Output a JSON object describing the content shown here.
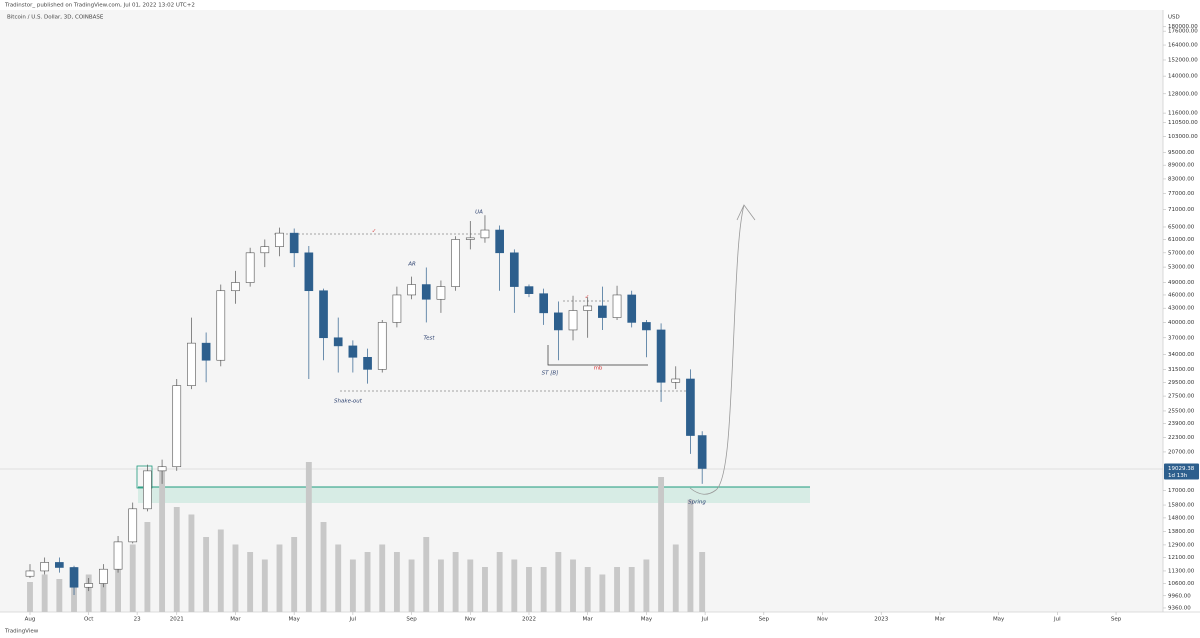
{
  "chart_data": {
    "type": "candlestick",
    "header": "Tradinstor_ published on TradingView.com, Jul 01, 2022 13:02 UTC+2",
    "title": "Bitcoin / U.S. Dollar, 3D, COINBASE",
    "currency": "USD",
    "footer": "TradingView",
    "log_scale": true,
    "up_color": "#ffffff",
    "down_color": "#2d5f8d",
    "wick_color": "#555555",
    "volume_color": "#c8c8c8",
    "x": [
      0,
      0.5,
      1,
      1.5,
      2,
      2.5,
      3,
      3.5,
      4,
      4.5,
      5,
      5.5,
      6,
      6.5,
      7,
      7.5,
      8,
      8.5,
      9,
      9.5,
      10,
      10.5,
      11,
      11.5,
      12,
      12.5,
      13,
      13.5,
      14,
      14.5,
      15,
      15.5,
      16,
      16.5,
      17,
      17.5,
      18,
      18.5,
      19,
      19.5,
      20,
      20.5,
      21,
      21.5,
      22,
      22.5,
      22.9
    ],
    "open": [
      11000,
      11300,
      11800,
      11500,
      10400,
      10600,
      11400,
      13100,
      15500,
      18800,
      19200,
      29000,
      36000,
      33000,
      47000,
      49000,
      57000,
      58800,
      63000,
      57000,
      47000,
      37000,
      35500,
      33500,
      31500,
      40000,
      46000,
      48500,
      45000,
      48000,
      61000,
      61500,
      64000,
      57000,
      48000,
      46300,
      42000,
      38500,
      42500,
      43500,
      41000,
      46000,
      40000,
      38500,
      29500,
      30000,
      22500
    ],
    "high": [
      11700,
      12100,
      12100,
      11600,
      10900,
      11700,
      13500,
      16000,
      19400,
      19900,
      30000,
      41000,
      38000,
      48500,
      52000,
      58500,
      61000,
      64800,
      64500,
      59000,
      47500,
      41000,
      36500,
      35000,
      40500,
      48000,
      50500,
      52900,
      49500,
      62000,
      67000,
      69000,
      65500,
      58000,
      48500,
      47500,
      44500,
      45800,
      45500,
      48000,
      48200,
      47000,
      40500,
      39800,
      32000,
      31500,
      23000
    ],
    "low": [
      10900,
      11100,
      11200,
      10000,
      10200,
      10400,
      11200,
      13000,
      15300,
      17600,
      18800,
      28500,
      29500,
      32000,
      44000,
      48000,
      53000,
      56000,
      53000,
      30000,
      33000,
      31000,
      31000,
      29300,
      31000,
      39000,
      45000,
      40000,
      42000,
      47000,
      58000,
      60000,
      47000,
      42000,
      45500,
      39500,
      33000,
      36500,
      37000,
      38500,
      40500,
      39000,
      33500,
      26700,
      28500,
      20500,
      17600
    ],
    "close": [
      11300,
      11800,
      11500,
      10400,
      10600,
      11400,
      13100,
      15500,
      18800,
      19200,
      29000,
      36000,
      33000,
      47000,
      49000,
      57000,
      58800,
      63000,
      57000,
      47000,
      37000,
      35500,
      33500,
      31500,
      40000,
      46000,
      48500,
      45000,
      48000,
      61000,
      61500,
      64000,
      57000,
      48000,
      46300,
      42000,
      38500,
      42500,
      43500,
      41000,
      46000,
      40000,
      38500,
      29500,
      30000,
      22500,
      19029.38
    ],
    "volume": [
      20,
      25,
      22,
      30,
      25,
      28,
      35,
      45,
      60,
      95,
      70,
      65,
      50,
      55,
      45,
      40,
      35,
      45,
      50,
      100,
      60,
      45,
      35,
      40,
      45,
      40,
      35,
      50,
      35,
      40,
      35,
      30,
      40,
      35,
      30,
      30,
      40,
      35,
      30,
      25,
      30,
      30,
      35,
      90,
      45,
      75,
      40
    ],
    "countdown": "1d 13h",
    "xlim": [
      -1.022,
      38.6
    ],
    "xticks": [
      {
        "value": 0,
        "label": "Aug"
      },
      {
        "value": 2,
        "label": "Oct"
      },
      {
        "value": 3.65,
        "label": "23"
      },
      {
        "value": 5,
        "label": "2021"
      },
      {
        "value": 7,
        "label": "Mar"
      },
      {
        "value": 9,
        "label": "May"
      },
      {
        "value": 11,
        "label": "Jul"
      },
      {
        "value": 13,
        "label": "Sep"
      },
      {
        "value": 15,
        "label": "Nov"
      },
      {
        "value": 17,
        "label": "2022"
      },
      {
        "value": 19,
        "label": "Mar"
      },
      {
        "value": 21,
        "label": "May"
      },
      {
        "value": 23,
        "label": "Jul"
      },
      {
        "value": 25,
        "label": "Sep"
      },
      {
        "value": 27,
        "label": "Nov"
      },
      {
        "value": 29,
        "label": "2023"
      },
      {
        "value": 31,
        "label": "Mar"
      },
      {
        "value": 33,
        "label": "May"
      },
      {
        "value": 35,
        "label": "Jul"
      },
      {
        "value": 37,
        "label": "Sep"
      }
    ],
    "ylim": [
      9170,
      196000
    ],
    "yticks": [
      {
        "value": 180000,
        "label": "180000.00"
      },
      {
        "value": 176000,
        "label": "176000.00"
      },
      {
        "value": 164000,
        "label": "164000.00"
      },
      {
        "value": 152000,
        "label": "152000.00"
      },
      {
        "value": 140000,
        "label": "140000.00"
      },
      {
        "value": 128000,
        "label": "128000.00"
      },
      {
        "value": 116000,
        "label": "116000.00"
      },
      {
        "value": 110500,
        "label": "110500.00"
      },
      {
        "value": 103000,
        "label": "103000.00"
      },
      {
        "value": 95000,
        "label": "95000.00"
      },
      {
        "value": 89000,
        "label": "89000.00"
      },
      {
        "value": 83000,
        "label": "83000.00"
      },
      {
        "value": 77000,
        "label": "77000.00"
      },
      {
        "value": 71000,
        "label": "71000.00"
      },
      {
        "value": 65000,
        "label": "65000.00"
      },
      {
        "value": 61000,
        "label": "61000.00"
      },
      {
        "value": 57000,
        "label": "57000.00"
      },
      {
        "value": 53000,
        "label": "53000.00"
      },
      {
        "value": 49000,
        "label": "49000.00"
      },
      {
        "value": 46000,
        "label": "46000.00"
      },
      {
        "value": 43000,
        "label": "43000.00"
      },
      {
        "value": 40000,
        "label": "40000.00"
      },
      {
        "value": 37000,
        "label": "37000.00"
      },
      {
        "value": 34000,
        "label": "34000.00"
      },
      {
        "value": 31500,
        "label": "31500.00"
      },
      {
        "value": 29500,
        "label": "29500.00"
      },
      {
        "value": 27500,
        "label": "27500.00"
      },
      {
        "value": 25500,
        "label": "25500.00"
      },
      {
        "value": 23900,
        "label": "23900.00"
      },
      {
        "value": 22300,
        "label": "22300.00"
      },
      {
        "value": 20700,
        "label": "20700.00"
      },
      {
        "value": 17000,
        "label": "17000.00"
      },
      {
        "value": 15800,
        "label": "15800.00"
      },
      {
        "value": 14800,
        "label": "14800.00"
      },
      {
        "value": 13800,
        "label": "13800.00"
      },
      {
        "value": 12900,
        "label": "12900.00"
      },
      {
        "value": 12100,
        "label": "12100.00"
      },
      {
        "value": 11300,
        "label": "11300.00"
      },
      {
        "value": 10600,
        "label": "10600.00"
      },
      {
        "value": 9960,
        "label": "9960.00"
      },
      {
        "value": 9360,
        "label": "9360.00"
      }
    ],
    "annotations": {
      "ua": "UA",
      "ar": "AR",
      "test": "Test",
      "st": "ST [B]",
      "shakeout": "Shake-out",
      "spring": "Spring",
      "mb": "mb",
      "check1": "✓",
      "check2": "✓"
    }
  }
}
